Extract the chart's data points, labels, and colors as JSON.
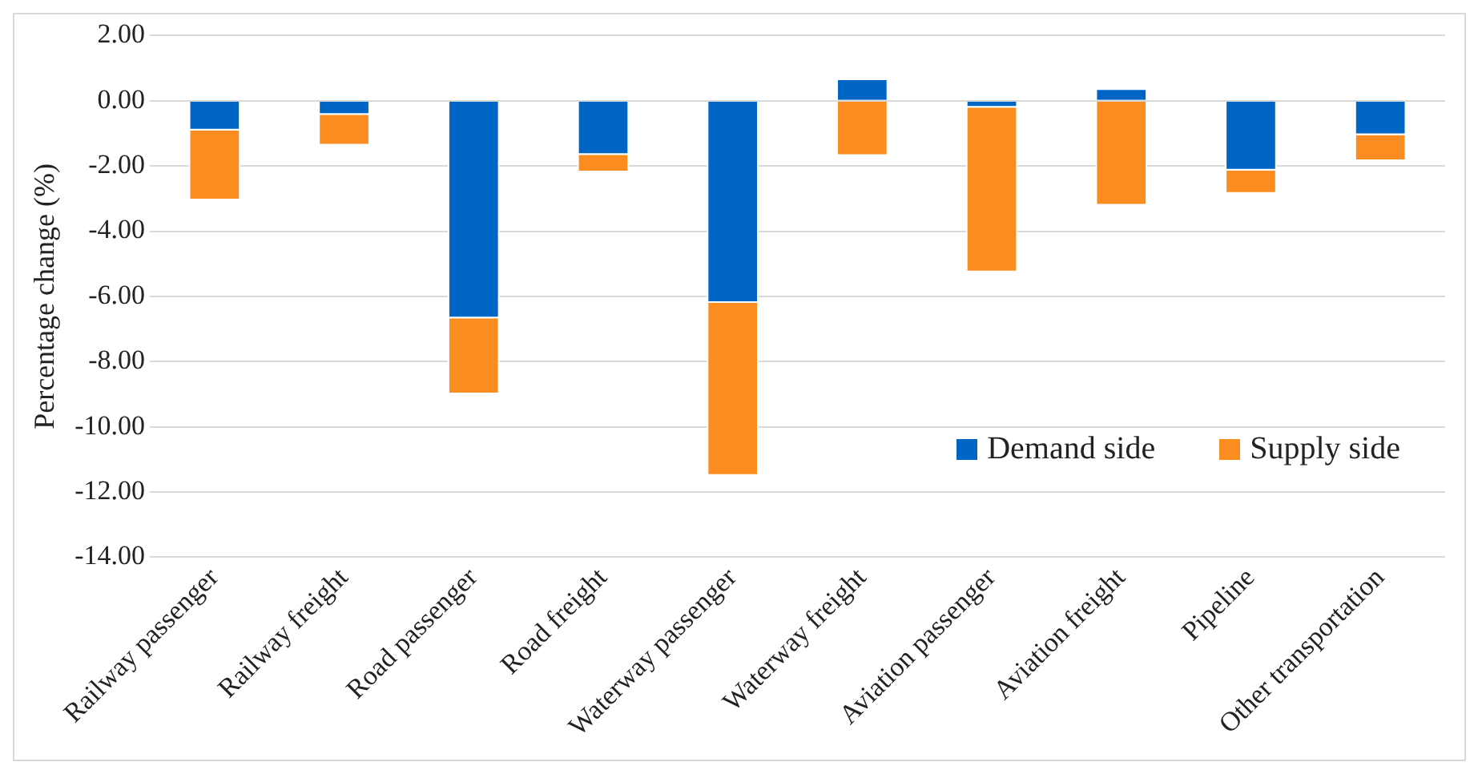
{
  "chart_data": {
    "type": "bar",
    "stacked": true,
    "ylabel": "Percentage change (%)",
    "categories": [
      "Railway passenger",
      "Railway freight",
      "Road passenger",
      "Road freight",
      "Waterway passenger",
      "Waterway freight",
      "Aviation passenger",
      "Aviation freight",
      "Pipeline",
      "Other transportation"
    ],
    "series": [
      {
        "name": "Demand side",
        "color": "#0066c6",
        "values": [
          -0.91,
          -0.43,
          -6.67,
          -1.66,
          -6.2,
          0.68,
          -0.21,
          0.38,
          -2.14,
          -1.05
        ]
      },
      {
        "name": "Supply side",
        "color": "#fb8c1f",
        "values": [
          -2.14,
          -0.94,
          -2.33,
          -0.53,
          -5.3,
          -1.69,
          -5.05,
          -3.21,
          -0.71,
          -0.8
        ]
      }
    ],
    "ylim": [
      -14,
      2
    ],
    "yticks": [
      {
        "value": -14,
        "label": "-14.00"
      },
      {
        "value": -12,
        "label": "-12.00"
      },
      {
        "value": -10,
        "label": "-10.00"
      },
      {
        "value": -8,
        "label": "-8.00"
      },
      {
        "value": -6,
        "label": "-6.00"
      },
      {
        "value": -4,
        "label": "-4.00"
      },
      {
        "value": -2,
        "label": "-2.00"
      },
      {
        "value": 0,
        "label": "0.00"
      },
      {
        "value": 2,
        "label": "2.00"
      }
    ],
    "grid": "y",
    "legend": "bottom right"
  }
}
